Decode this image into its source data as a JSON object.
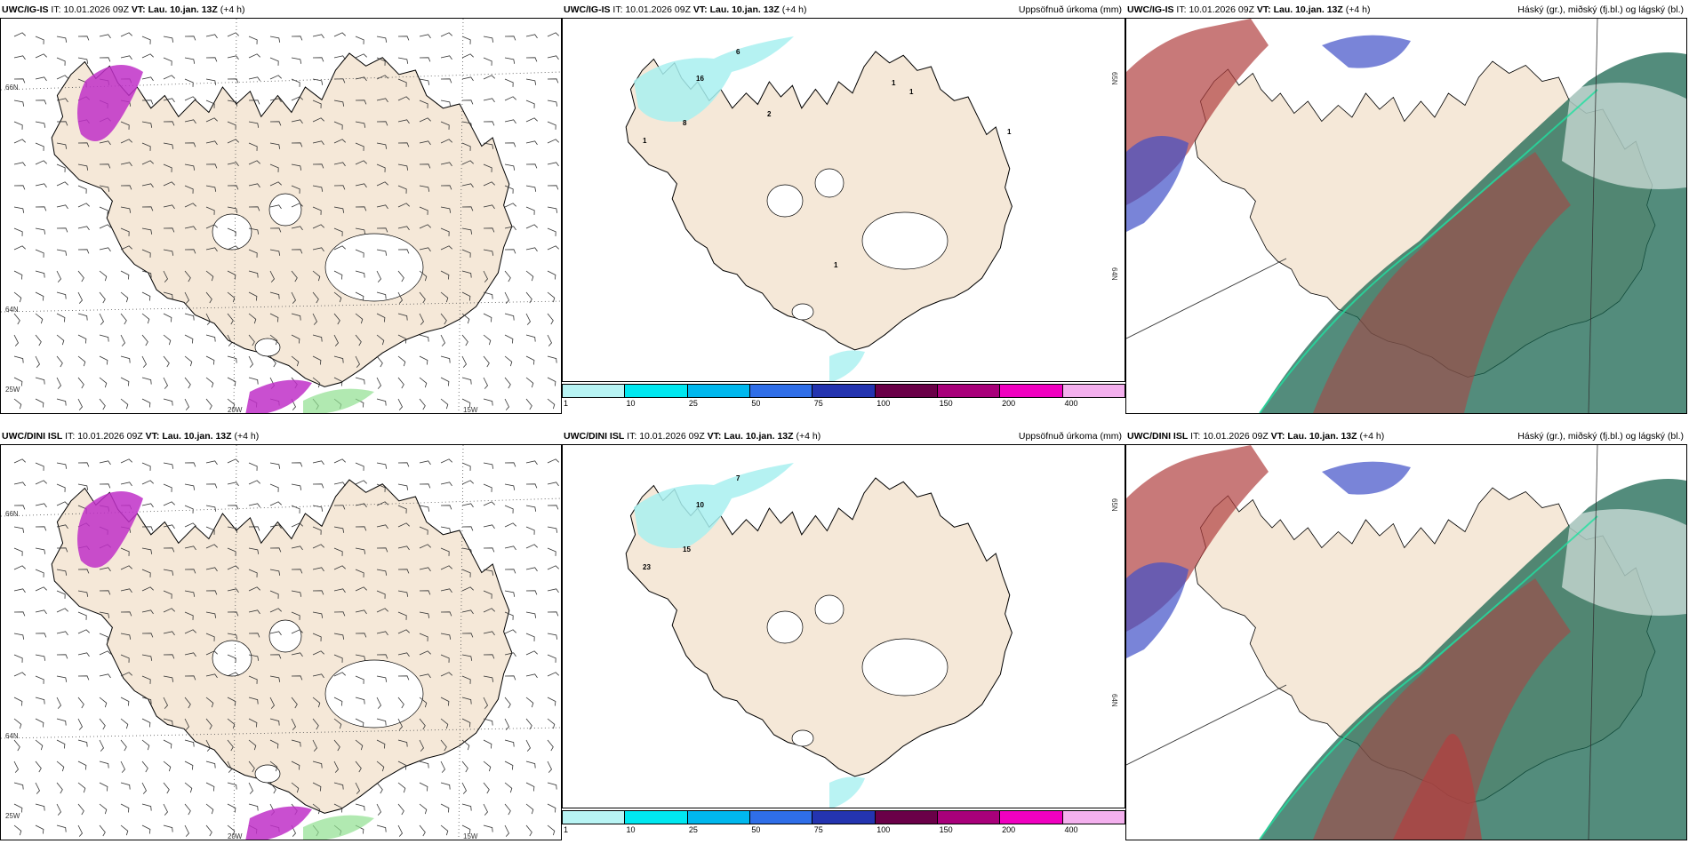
{
  "rows": [
    {
      "model": "UWC/IG-IS",
      "issue_time": "10.01.2026 09Z",
      "valid_prefix": "VT:",
      "valid_time": "Lau. 10.jan. 13Z",
      "lead": "(+4 h)",
      "wind_labels": [
        "66N",
        "64N",
        "25W",
        "20W",
        "15W"
      ],
      "precip_labels": [
        "65N",
        "64N"
      ],
      "precip_values": [
        "6",
        "16",
        "1",
        "8",
        "1",
        "1",
        "1",
        "1",
        "2"
      ]
    },
    {
      "model": "UWC/DINI ISL",
      "issue_time": "10.01.2026 09Z",
      "valid_prefix": "VT:",
      "valid_time": "Lau. 10.jan. 13Z",
      "lead": "(+4 h)",
      "wind_labels": [
        "66N",
        "64N",
        "25W",
        "20W",
        "15W"
      ],
      "precip_labels": [
        "65N",
        "64N"
      ],
      "precip_values": [
        "7",
        "10",
        "23",
        "15"
      ]
    }
  ],
  "it_prefix": "IT:",
  "precip_title": "Uppsöfnuð úrkoma (mm)",
  "cloud_title": "Háský (gr.), miðský (fj.bl.) og lágský (bl.)",
  "colorbar": {
    "ticks": [
      "1",
      "10",
      "25",
      "50",
      "75",
      "100",
      "150",
      "200",
      "400"
    ],
    "colors": [
      "#b8f4f4",
      "#00e8f0",
      "#00b8ee",
      "#2f6ee8",
      "#2434b0",
      "#6a0048",
      "#a8007a",
      "#f000c0",
      "#f4b0ee"
    ]
  },
  "colors": {
    "land": "#f5e8d8",
    "ice": "#ffffff",
    "precip_light": "#a8f0f0",
    "magenta": "#c030c8",
    "high_cloud": "#1a6650",
    "mid_cloud": "#b04040",
    "low_cloud": "#4050c8"
  }
}
